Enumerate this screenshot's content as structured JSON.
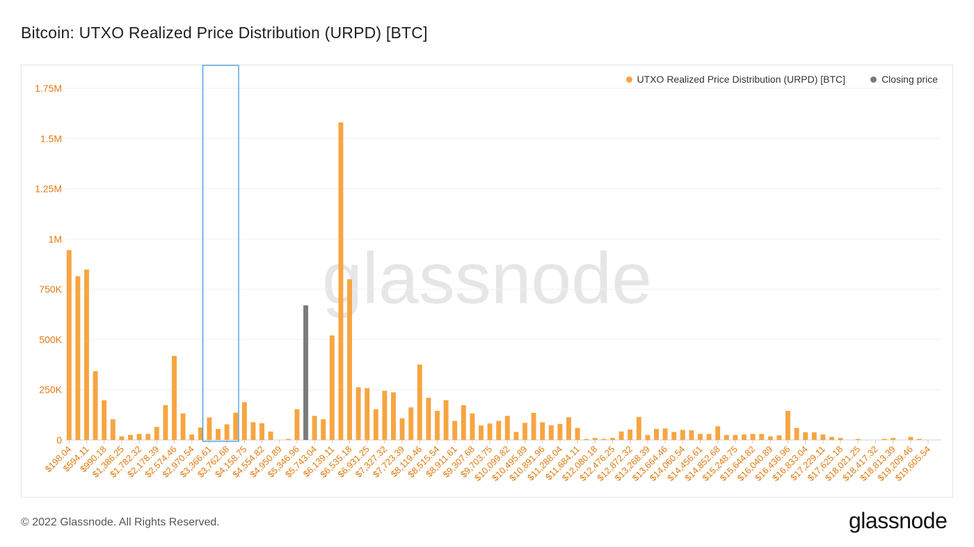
{
  "page": {
    "title": "Bitcoin: UTXO Realized Price Distribution (URPD) [BTC]",
    "copyright": "© 2022 Glassnode. All Rights Reserved.",
    "logo": "glassnode",
    "watermark": "glassnode"
  },
  "legend": {
    "items": [
      {
        "label": "UTXO Realized Price Distribution (URPD) [BTC]",
        "color": "#f7a541"
      },
      {
        "label": "Closing price",
        "color": "#7b7b7b"
      }
    ]
  },
  "colors": {
    "bar": "#f7a541",
    "closing": "#7b7b7b",
    "axis_text": "#e07a10",
    "highlight": "#3a8fd8"
  },
  "chart_data": {
    "type": "bar",
    "title": "Bitcoin: UTXO Realized Price Distribution (URPD) [BTC]",
    "xlabel": "",
    "ylabel": "",
    "ylim": [
      0,
      1750000
    ],
    "yticks": [
      {
        "value": 0,
        "label": "0"
      },
      {
        "value": 250000,
        "label": "250K"
      },
      {
        "value": 500000,
        "label": "500K"
      },
      {
        "value": 750000,
        "label": "750K"
      },
      {
        "value": 1000000,
        "label": "1M"
      },
      {
        "value": 1250000,
        "label": "1.25M"
      },
      {
        "value": 1500000,
        "label": "1.5M"
      },
      {
        "value": 1750000,
        "label": "1.75M"
      }
    ],
    "grid": true,
    "legend_position": "top-right",
    "bucket_count": 100,
    "tick_labels": [
      {
        "bucket": 0,
        "label": "$198.04"
      },
      {
        "bucket": 2,
        "label": "$594.11"
      },
      {
        "bucket": 4,
        "label": "$990.18"
      },
      {
        "bucket": 6,
        "label": "$1,386.25"
      },
      {
        "bucket": 8,
        "label": "$1,782.32"
      },
      {
        "bucket": 10,
        "label": "$2,178.39"
      },
      {
        "bucket": 12,
        "label": "$2,574.46"
      },
      {
        "bucket": 14,
        "label": "$2,970.54"
      },
      {
        "bucket": 16,
        "label": "$3,366.61"
      },
      {
        "bucket": 18,
        "label": "$3,762.68"
      },
      {
        "bucket": 20,
        "label": "$4,158.75"
      },
      {
        "bucket": 22,
        "label": "$4,554.82"
      },
      {
        "bucket": 24,
        "label": "$4,950.89"
      },
      {
        "bucket": 26,
        "label": "$5,346.96"
      },
      {
        "bucket": 28,
        "label": "$5,743.04"
      },
      {
        "bucket": 30,
        "label": "$6,139.11"
      },
      {
        "bucket": 32,
        "label": "$6,535.18"
      },
      {
        "bucket": 34,
        "label": "$6,931.25"
      },
      {
        "bucket": 36,
        "label": "$7,327.32"
      },
      {
        "bucket": 38,
        "label": "$7,723.39"
      },
      {
        "bucket": 40,
        "label": "$8,119.46"
      },
      {
        "bucket": 42,
        "label": "$8,515.54"
      },
      {
        "bucket": 44,
        "label": "$8,911.61"
      },
      {
        "bucket": 46,
        "label": "$9,307.68"
      },
      {
        "bucket": 48,
        "label": "$9,703.75"
      },
      {
        "bucket": 50,
        "label": "$10,099.82"
      },
      {
        "bucket": 52,
        "label": "$10,495.89"
      },
      {
        "bucket": 54,
        "label": "$10,891.96"
      },
      {
        "bucket": 56,
        "label": "$11,288.04"
      },
      {
        "bucket": 58,
        "label": "$11,684.11"
      },
      {
        "bucket": 60,
        "label": "$12,080.18"
      },
      {
        "bucket": 62,
        "label": "$12,476.25"
      },
      {
        "bucket": 64,
        "label": "$12,872.32"
      },
      {
        "bucket": 66,
        "label": "$13,268.39"
      },
      {
        "bucket": 68,
        "label": "$13,664.46"
      },
      {
        "bucket": 70,
        "label": "$14,060.54"
      },
      {
        "bucket": 72,
        "label": "$14,456.61"
      },
      {
        "bucket": 74,
        "label": "$14,852.68"
      },
      {
        "bucket": 76,
        "label": "$15,248.75"
      },
      {
        "bucket": 78,
        "label": "$15,644.82"
      },
      {
        "bucket": 80,
        "label": "$16,040.89"
      },
      {
        "bucket": 82,
        "label": "$16,436.96"
      },
      {
        "bucket": 84,
        "label": "$16,833.04"
      },
      {
        "bucket": 86,
        "label": "$17,229.11"
      },
      {
        "bucket": 88,
        "label": "$17,625.18"
      },
      {
        "bucket": 90,
        "label": "$18,021.25"
      },
      {
        "bucket": 92,
        "label": "$18,417.32"
      },
      {
        "bucket": 94,
        "label": "$18,813.39"
      },
      {
        "bucket": 96,
        "label": "$19,209.46"
      },
      {
        "bucket": 98,
        "label": "$19,605.54"
      }
    ],
    "values": [
      945000,
      815000,
      848000,
      342000,
      198000,
      103000,
      18000,
      25000,
      30000,
      30000,
      65000,
      173000,
      418000,
      132000,
      27000,
      62000,
      112000,
      55000,
      78000,
      136000,
      188000,
      88000,
      83000,
      42000,
      0,
      5000,
      153000,
      670000,
      120000,
      103000,
      520000,
      1580000,
      800000,
      262000,
      258000,
      153000,
      245000,
      237000,
      108000,
      162000,
      375000,
      210000,
      145000,
      198000,
      95000,
      173000,
      132000,
      72000,
      82000,
      95000,
      120000,
      40000,
      85000,
      135000,
      88000,
      73000,
      80000,
      113000,
      60000,
      5000,
      10000,
      5000,
      10000,
      42000,
      52000,
      115000,
      25000,
      55000,
      57000,
      40000,
      50000,
      48000,
      30000,
      30000,
      68000,
      25000,
      25000,
      27000,
      30000,
      30000,
      18000,
      23000,
      145000,
      60000,
      38000,
      38000,
      27000,
      15000,
      10000,
      0,
      5000,
      0,
      0,
      5000,
      10000,
      0,
      15000,
      5000,
      0,
      0
    ],
    "closing_price_bucket": 27,
    "highlight_buckets": [
      16,
      19
    ]
  }
}
